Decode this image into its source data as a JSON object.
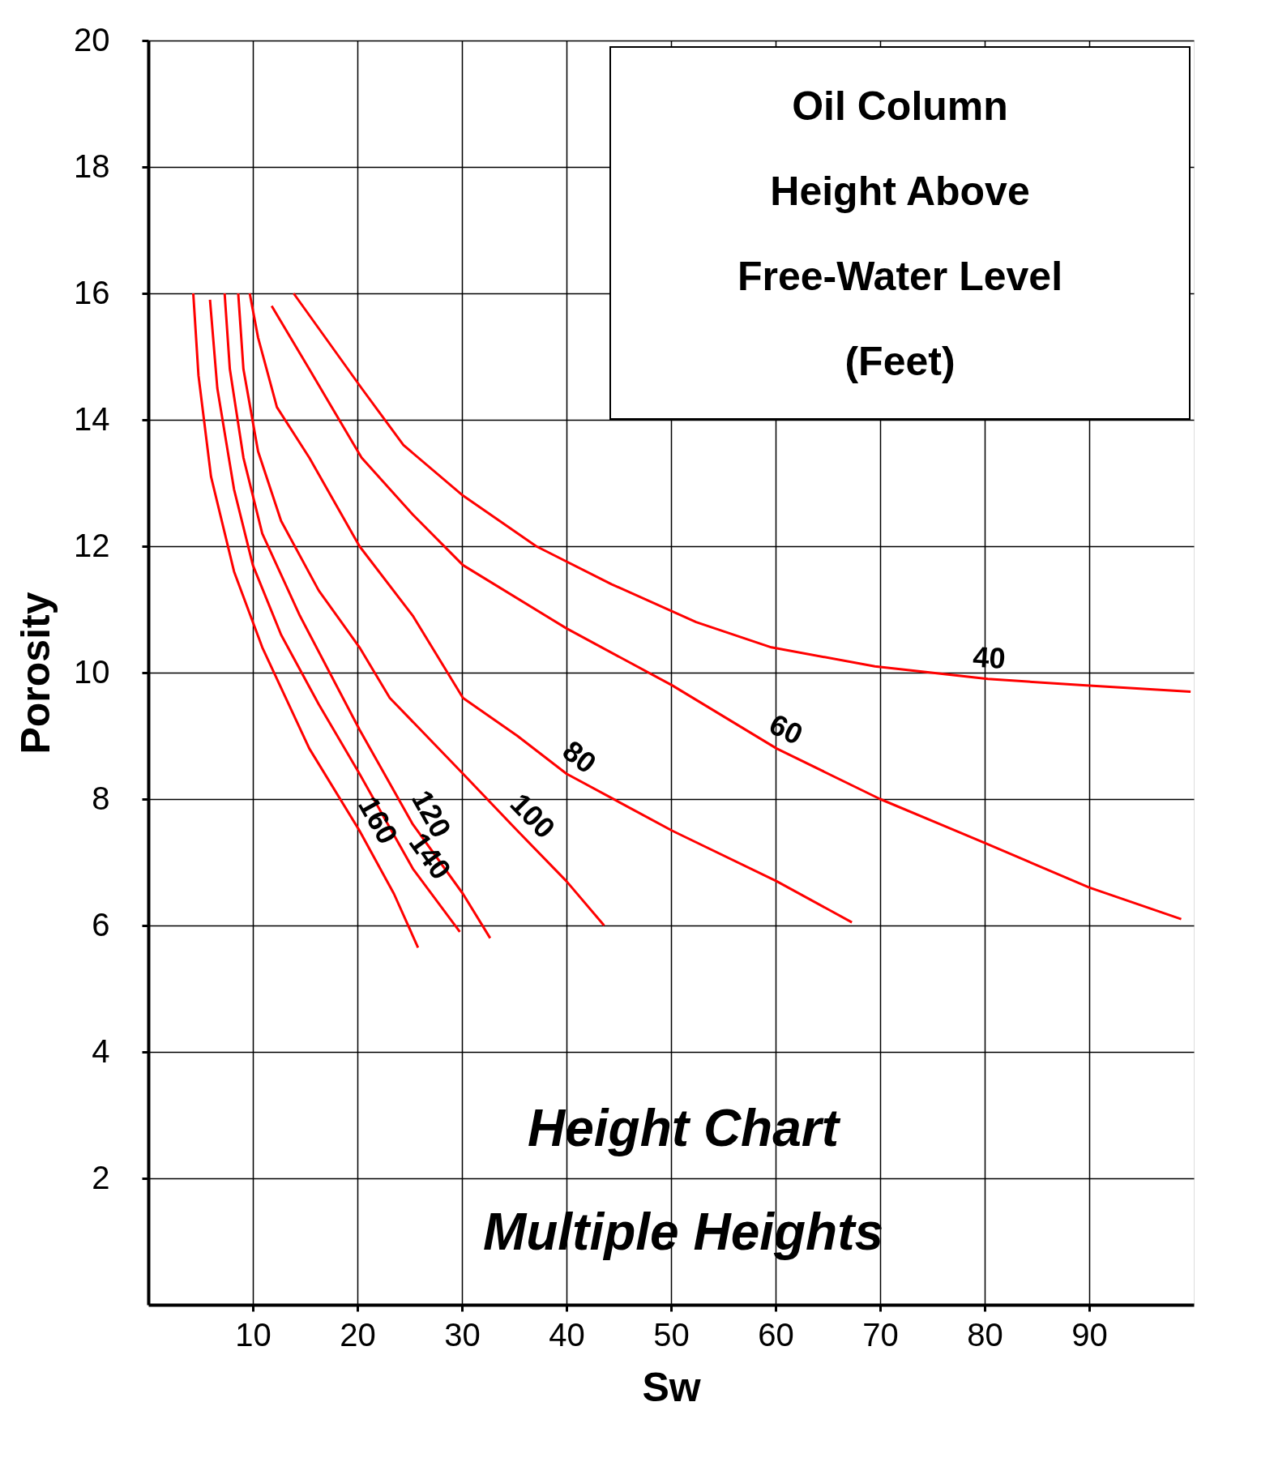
{
  "chart_data": {
    "type": "line",
    "title": "Height Chart Multiple Heights",
    "xlabel": "Sw",
    "ylabel": "Porosity",
    "xlim": [
      0,
      100
    ],
    "xticks": [
      10,
      20,
      30,
      40,
      50,
      60,
      70,
      80,
      90
    ],
    "ylim": [
      0,
      20
    ],
    "yticks": [
      2,
      4,
      6,
      8,
      10,
      12,
      14,
      16,
      18,
      20
    ],
    "grid": true,
    "legend": false,
    "marker": "none",
    "line_style": "solid",
    "series": [
      {
        "color": "#ff0000",
        "x": [
          13.9,
          20.4,
          24.4,
          30.1,
          37.1,
          44.3,
          52.4,
          59.6,
          69.5,
          80.3,
          89.4,
          99.7
        ],
        "values": [
          16.0,
          14.5,
          13.6,
          12.8,
          12.0,
          11.4,
          10.8,
          10.4,
          10.1,
          9.9,
          9.8,
          9.7
        ]
      },
      {
        "color": "#ff0000",
        "x": [
          11.8,
          15.4,
          20.4,
          25.3,
          30.1,
          40.0,
          50.1,
          60.1,
          70.0,
          80.1,
          90.0,
          98.8
        ],
        "values": [
          15.8,
          14.8,
          13.4,
          12.5,
          11.7,
          10.7,
          9.8,
          8.8,
          8.0,
          7.3,
          6.6,
          6.1
        ]
      },
      {
        "color": "#ff0000",
        "x": [
          9.7,
          10.5,
          12.3,
          15.4,
          20.2,
          25.3,
          30.1,
          35.3,
          40.0,
          50.1,
          60.1,
          67.3
        ],
        "values": [
          16.0,
          15.3,
          14.2,
          13.4,
          12.0,
          10.9,
          9.6,
          9.0,
          8.4,
          7.5,
          6.7,
          6.05
        ]
      },
      {
        "color": "#ff0000",
        "x": [
          8.6,
          9.1,
          10.5,
          12.7,
          16.3,
          20.2,
          23.1,
          30.1,
          35.3,
          40.0,
          43.6
        ],
        "values": [
          16.0,
          14.8,
          13.5,
          12.4,
          11.3,
          10.4,
          9.6,
          8.4,
          7.5,
          6.7,
          6.0
        ]
      },
      {
        "color": "#ff0000",
        "x": [
          7.3,
          7.8,
          9.1,
          10.9,
          14.5,
          20.2,
          25.3,
          30.1,
          32.7
        ],
        "values": [
          16.0,
          14.8,
          13.4,
          12.2,
          10.9,
          9.1,
          7.6,
          6.5,
          5.8
        ]
      },
      {
        "color": "#ff0000",
        "x": [
          5.9,
          6.6,
          8.2,
          10.0,
          12.7,
          16.3,
          20.2,
          25.3,
          29.8
        ],
        "values": [
          15.9,
          14.5,
          12.9,
          11.7,
          10.6,
          9.5,
          8.4,
          6.9,
          5.9
        ]
      },
      {
        "color": "#ff0000",
        "x": [
          4.3,
          4.8,
          6.0,
          8.2,
          10.9,
          15.4,
          20.2,
          23.5,
          25.8
        ],
        "values": [
          16.0,
          14.7,
          13.1,
          11.6,
          10.4,
          8.8,
          7.5,
          6.5,
          5.65
        ]
      }
    ],
    "annotations": [
      "Oil Column Height Above Free-Water Level (Feet)",
      {
        "text": "40",
        "x": 80.3,
        "y": 9.9
      },
      {
        "text": "60",
        "x": 60.1,
        "y": 8.8
      },
      {
        "text": "80",
        "x": 40.0,
        "y": 8.4
      },
      {
        "text": "100",
        "x": 35.3,
        "y": 7.5
      },
      {
        "text": "120",
        "x": 25.3,
        "y": 7.6
      },
      {
        "text": "140",
        "x": 25.3,
        "y": 6.9
      },
      {
        "text": "160",
        "x": 20.2,
        "y": 7.5
      }
    ]
  }
}
